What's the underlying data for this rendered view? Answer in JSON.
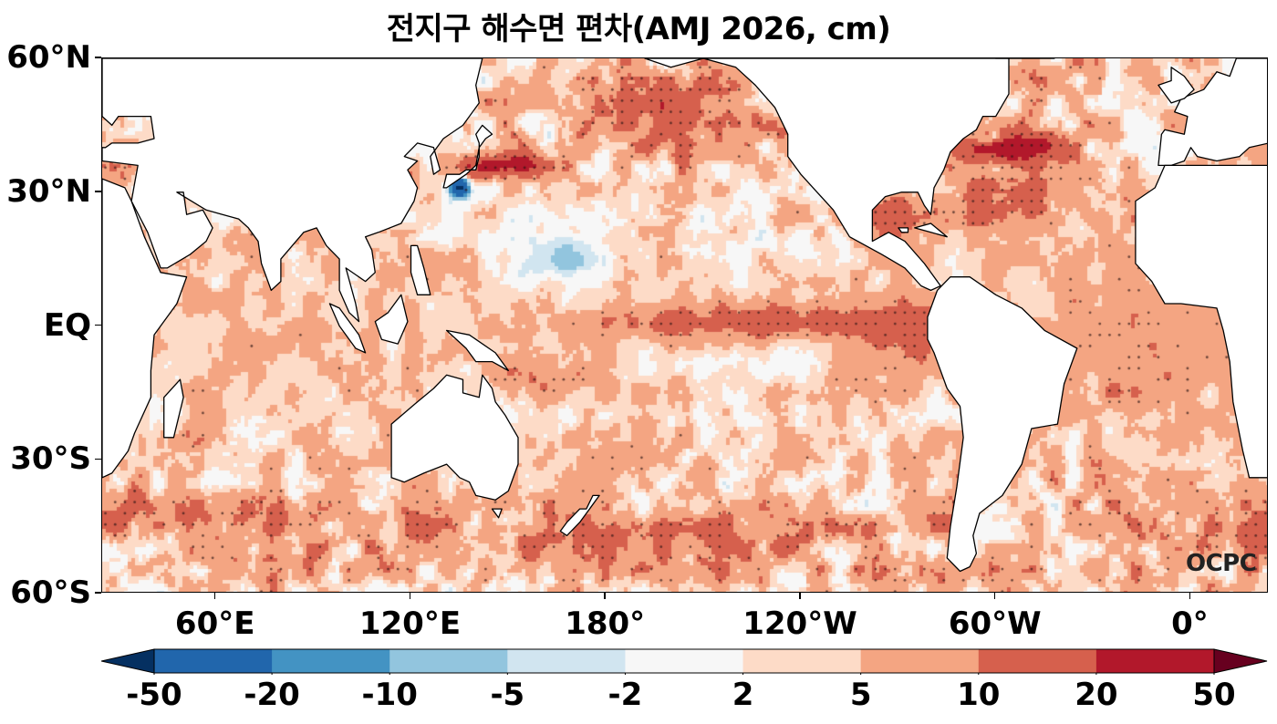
{
  "title": "전지구 해수면 편차(AMJ 2026, cm)",
  "watermark": "OCPC",
  "chart_data": {
    "type": "heatmap",
    "title": "전지구 해수면 편차(AMJ 2026, cm)",
    "variable": "Sea level anomaly",
    "units": "cm",
    "period": "AMJ 2026",
    "projection": "plate carree",
    "lon_range_deg_east": [
      25,
      384
    ],
    "lat_range": [
      -60,
      60
    ],
    "x_ticks": [
      {
        "lon": 60,
        "label": "60°E"
      },
      {
        "lon": 120,
        "label": "120°E"
      },
      {
        "lon": 180,
        "label": "180°"
      },
      {
        "lon": 240,
        "label": "120°W"
      },
      {
        "lon": 300,
        "label": "60°W"
      },
      {
        "lon": 360,
        "label": "0°"
      }
    ],
    "y_ticks": [
      {
        "lat": 60,
        "label": "60°N"
      },
      {
        "lat": 30,
        "label": "30°N"
      },
      {
        "lat": 0,
        "label": "EQ"
      },
      {
        "lat": -30,
        "label": "30°S"
      },
      {
        "lat": -60,
        "label": "60°S"
      }
    ],
    "colorbar": {
      "levels": [
        -50,
        -20,
        -10,
        -5,
        -2,
        2,
        5,
        10,
        20,
        50
      ],
      "labels": [
        "-50",
        "-20",
        "-10",
        "-5",
        "-2",
        "2",
        "5",
        "10",
        "20",
        "50"
      ],
      "colors": [
        "#053061",
        "#2166ac",
        "#4393c3",
        "#92c5de",
        "#d1e5f0",
        "#f7f7f7",
        "#fddbc7",
        "#f4a582",
        "#d6604d",
        "#b2182b",
        "#67001f"
      ],
      "extend": "both",
      "orientation": "horizontal",
      "placement": "bottom"
    },
    "features": [
      {
        "region": "Equatorial Pacific (160°E–80°W)",
        "anomaly_range_cm": [
          10,
          20
        ],
        "stippled": true
      },
      {
        "region": "Western North Pacific (10–20°N, 140–180°E)",
        "anomaly_range_cm": [
          -10,
          -5
        ],
        "stippled": true
      },
      {
        "region": "Kuroshio Extension (~35°N)",
        "anomaly_range_cm": [
          20,
          50
        ]
      },
      {
        "region": "South of Japan (~32°N, 135°E)",
        "anomaly_range_cm": [
          -50,
          -20
        ]
      },
      {
        "region": "Gulf Stream (~40°N)",
        "anomaly_range_cm": [
          20,
          50
        ]
      },
      {
        "region": "Tropical Atlantic",
        "anomaly_range_cm": [
          5,
          10
        ],
        "stippled": true
      },
      {
        "region": "Southern Ocean (40–55°S)",
        "anomaly_range_cm": [
          5,
          20
        ]
      }
    ],
    "stippling": "statistically significant areas (dots)"
  }
}
